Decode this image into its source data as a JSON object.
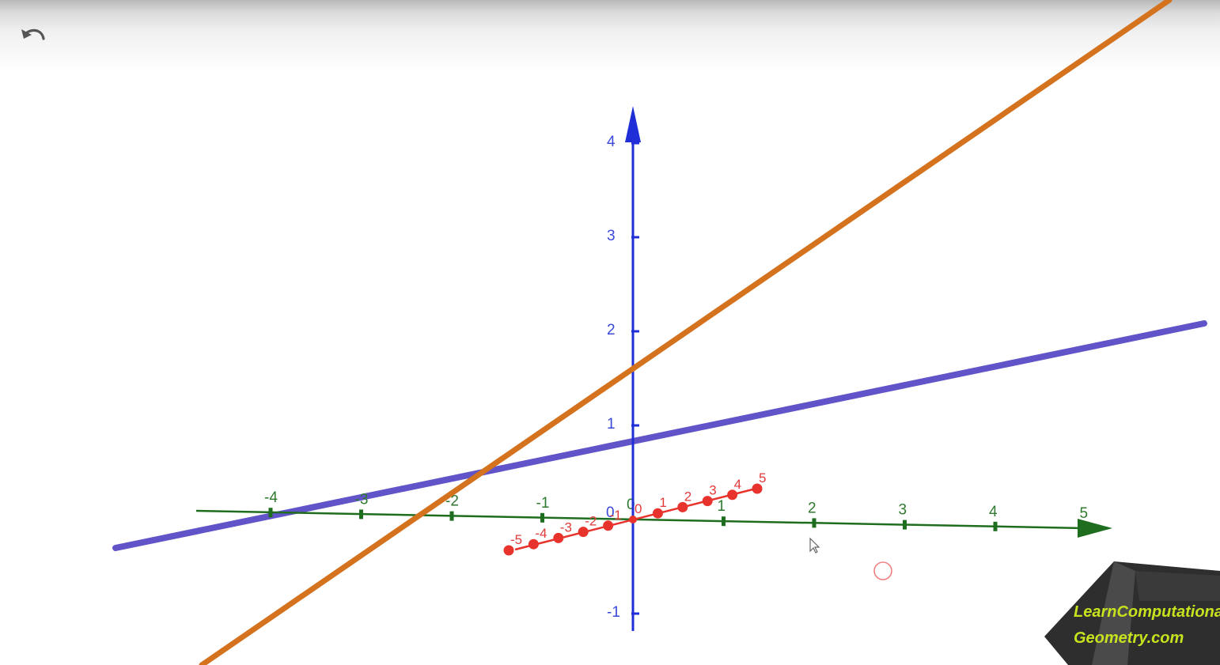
{
  "toolbar": {
    "undo_icon": "undo-icon"
  },
  "axes": {
    "x": {
      "color": "#1f6e1f",
      "tick_labels": [
        "-4",
        "-3",
        "-2",
        "-1",
        "0",
        "1",
        "2",
        "3",
        "4",
        "5"
      ]
    },
    "y": {
      "color": "#e8322c",
      "tick_labels": [
        "-5",
        "-4",
        "-3",
        "-2",
        "-1",
        "0",
        "1",
        "2",
        "3",
        "4",
        "5"
      ]
    },
    "z": {
      "color": "#1f2ed6",
      "tick_labels": [
        "-1",
        "0",
        "1",
        "2",
        "3",
        "4"
      ]
    }
  },
  "lines": [
    {
      "color": "#6054c8"
    },
    {
      "color": "#d4721e"
    }
  ],
  "watermark": {
    "line1": "LearnComputational",
    "line2": "Geometry.com"
  }
}
